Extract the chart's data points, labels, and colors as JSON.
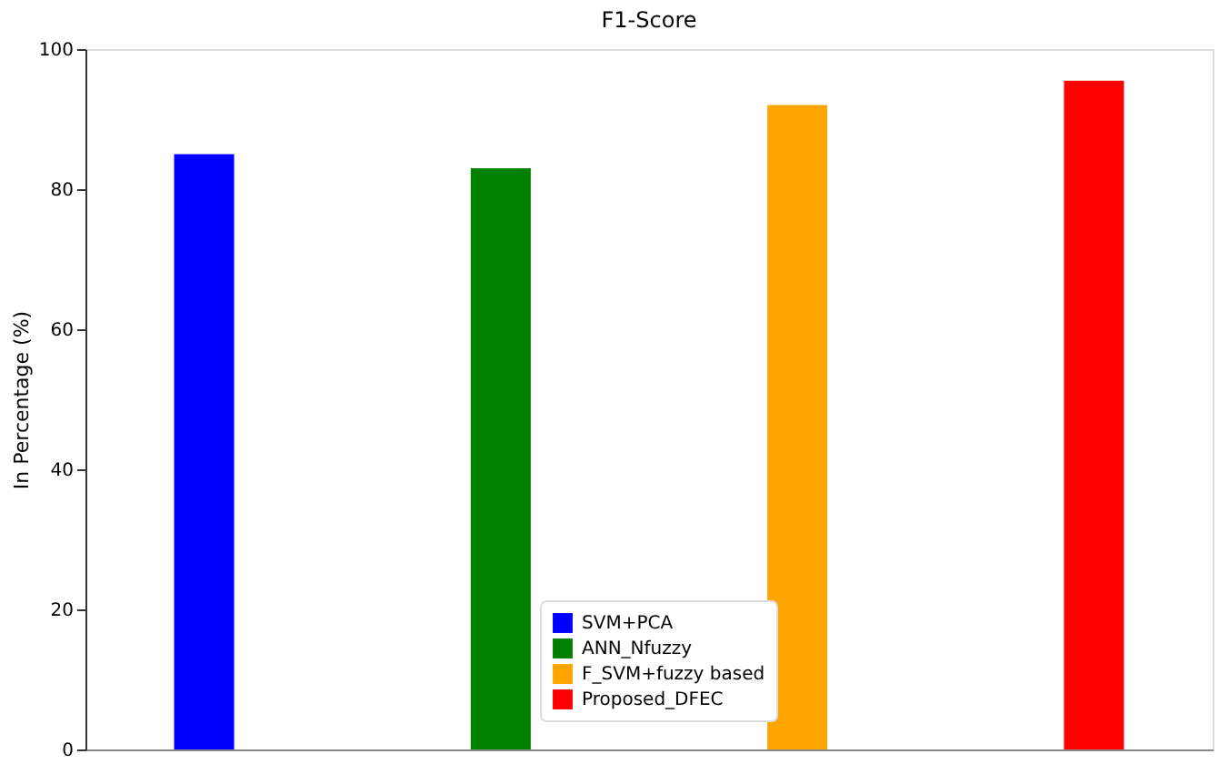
{
  "chart_data": {
    "type": "bar",
    "title": "F1-Score",
    "ylabel": "In Percentage (%)",
    "categories": [
      null,
      null,
      null,
      null
    ],
    "series": [
      {
        "name": "SVM+PCA",
        "color": "#0000ff",
        "values": [
          85,
          null,
          null,
          null
        ]
      },
      {
        "name": "ANN_Nfuzzy",
        "color": "#008000",
        "values": [
          null,
          83,
          null,
          null
        ]
      },
      {
        "name": "F_SVM+fuzzy based",
        "color": "#ffa500",
        "values": [
          null,
          null,
          92,
          null
        ]
      },
      {
        "name": "Proposed_DFEC",
        "color": "#ff0000",
        "values": [
          null,
          null,
          null,
          95.5
        ]
      }
    ],
    "ylim": [
      0,
      100
    ],
    "yticks": [
      0,
      20,
      40,
      60,
      80,
      100
    ],
    "grid": false,
    "legend": "bottom",
    "tick_labels": "y"
  }
}
